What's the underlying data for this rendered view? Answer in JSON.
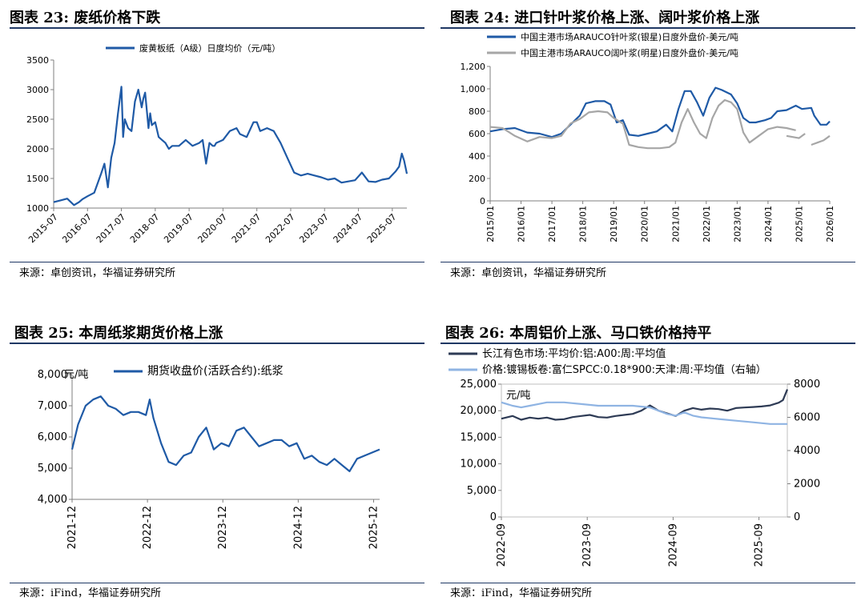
{
  "panels": [
    {
      "title": "图表 23:  废纸价格下跌",
      "source": "来源：卓创资讯，华福证券研究所"
    },
    {
      "title": "图表 24:  进口针叶浆价格上涨、阔叶浆价格上涨",
      "source": "来源：卓创资讯，华福证券研究所"
    },
    {
      "title": "图表 25:  本周纸浆期货价格上涨",
      "source": "来源：iFind，华福证券研究所"
    },
    {
      "title": "图表 26:  本周铝价上涨、马口铁价格持平",
      "source": "来源：iFind，华福证券研究所"
    }
  ],
  "chart_data": [
    {
      "type": "line",
      "title": "废纸价格下跌",
      "ylim": [
        1000,
        3500
      ],
      "yticks": [
        "1000",
        "1500",
        "2000",
        "2500",
        "3000",
        "3500"
      ],
      "yticks_v": [
        1000,
        1500,
        2000,
        2500,
        3000,
        3500
      ],
      "xlim": [
        2015.5,
        2025.93
      ],
      "xticks": [
        "2015-07",
        "2016-07",
        "2017-07",
        "2018-07",
        "2019-07",
        "2020-07",
        "2021-07",
        "2022-07",
        "2023-07",
        "2024-07",
        "2025-07"
      ],
      "xticks_v": [
        2015.5,
        2016.5,
        2017.5,
        2018.5,
        2019.5,
        2020.5,
        2021.5,
        2022.5,
        2023.5,
        2024.5,
        2025.5
      ],
      "series": [
        {
          "name": "废黄板纸（A级）日度均价（元/吨）",
          "color": "#1f5aa6",
          "x": [
            2015.5,
            2015.7,
            2015.9,
            2016.1,
            2016.25,
            2016.35,
            2016.5,
            2016.7,
            2016.9,
            2017.0,
            2017.1,
            2017.2,
            2017.3,
            2017.4,
            2017.5,
            2017.55,
            2017.6,
            2017.7,
            2017.8,
            2017.9,
            2018.0,
            2018.1,
            2018.15,
            2018.2,
            2018.3,
            2018.35,
            2018.4,
            2018.5,
            2018.6,
            2018.7,
            2018.8,
            2018.9,
            2019.0,
            2019.2,
            2019.4,
            2019.6,
            2019.8,
            2019.9,
            2020.0,
            2020.1,
            2020.2,
            2020.25,
            2020.3,
            2020.5,
            2020.7,
            2020.9,
            2021.0,
            2021.2,
            2021.4,
            2021.5,
            2021.6,
            2021.8,
            2022.0,
            2022.2,
            2022.4,
            2022.6,
            2022.8,
            2023.0,
            2023.2,
            2023.4,
            2023.6,
            2023.8,
            2024.0,
            2024.2,
            2024.4,
            2024.6,
            2024.8,
            2025.0,
            2025.2,
            2025.4,
            2025.6,
            2025.7,
            2025.78,
            2025.85,
            2025.93
          ],
          "y": [
            1100,
            1130,
            1160,
            1050,
            1100,
            1150,
            1200,
            1260,
            1580,
            1750,
            1350,
            1850,
            2100,
            2600,
            3050,
            2200,
            2500,
            2350,
            2300,
            2800,
            3000,
            2700,
            2850,
            2950,
            2350,
            2600,
            2400,
            2450,
            2200,
            2150,
            2100,
            2000,
            2050,
            2050,
            2150,
            2050,
            2100,
            2150,
            1750,
            2100,
            2050,
            2050,
            2100,
            2150,
            2300,
            2350,
            2250,
            2200,
            2450,
            2450,
            2300,
            2350,
            2300,
            2100,
            1850,
            1600,
            1550,
            1580,
            1550,
            1520,
            1480,
            1500,
            1430,
            1450,
            1470,
            1600,
            1450,
            1440,
            1480,
            1500,
            1620,
            1700,
            1920,
            1800,
            1580
          ]
        }
      ]
    },
    {
      "type": "line",
      "title": "进口针叶浆价格上涨、阔叶浆价格上涨",
      "ylim": [
        0,
        1200
      ],
      "yticks": [
        "0",
        "200",
        "400",
        "600",
        "800",
        "1,000",
        "1,200"
      ],
      "yticks_v": [
        0,
        200,
        400,
        600,
        800,
        1000,
        1200
      ],
      "xlim": [
        2015.0,
        2026.0
      ],
      "xticks": [
        "2015/01",
        "2016/01",
        "2017/01",
        "2018/01",
        "2019/01",
        "2020/01",
        "2021/01",
        "2022/01",
        "2023/01",
        "2024/01",
        "2025/01",
        "2026/01"
      ],
      "xticks_v": [
        2015,
        2016,
        2017,
        2018,
        2019,
        2020,
        2021,
        2022,
        2023,
        2024,
        2025,
        2026
      ],
      "series": [
        {
          "name": "中国主港市场ARAUCO针叶浆(银星)日度外盘价-美元/吨",
          "color": "#1f5aa6",
          "x": [
            2015.0,
            2015.4,
            2015.8,
            2016.2,
            2016.6,
            2017.0,
            2017.3,
            2017.6,
            2017.9,
            2018.1,
            2018.4,
            2018.7,
            2018.9,
            2019.1,
            2019.3,
            2019.5,
            2019.8,
            2020.1,
            2020.4,
            2020.7,
            2020.9,
            2021.1,
            2021.3,
            2021.5,
            2021.7,
            2021.9,
            2022.1,
            2022.3,
            2022.5,
            2022.8,
            2023.0,
            2023.2,
            2023.4,
            2023.6,
            2023.9,
            2024.1,
            2024.3,
            2024.6,
            2024.9,
            2025.1,
            2025.4,
            2025.5,
            2025.7,
            2025.9,
            2026.0
          ],
          "y": [
            620,
            640,
            650,
            610,
            600,
            570,
            600,
            680,
            760,
            870,
            890,
            890,
            860,
            700,
            720,
            590,
            580,
            600,
            620,
            680,
            620,
            820,
            980,
            980,
            880,
            760,
            920,
            1010,
            990,
            950,
            870,
            740,
            700,
            700,
            720,
            740,
            800,
            810,
            850,
            820,
            830,
            760,
            680,
            680,
            710
          ]
        },
        {
          "name": "中国主港市场ARAUCO阔叶浆(明星)日度外盘价-美元/吨",
          "color": "#a6a6a6",
          "x": [
            2015.0,
            2015.4,
            2015.8,
            2016.2,
            2016.6,
            2017.0,
            2017.3,
            2017.6,
            2017.9,
            2018.2,
            2018.5,
            2018.8,
            2019.0,
            2019.3,
            2019.5,
            2019.8,
            2020.1,
            2020.5,
            2020.8,
            2021.0,
            2021.2,
            2021.4,
            2021.6,
            2021.8,
            2022.0,
            2022.2,
            2022.4,
            2022.6,
            2022.8,
            2023.0,
            2023.2,
            2023.4,
            2023.7,
            2024.0,
            2024.3,
            2024.6,
            2024.9
          ],
          "y": [
            660,
            650,
            580,
            530,
            570,
            560,
            580,
            690,
            730,
            790,
            800,
            790,
            740,
            690,
            500,
            480,
            470,
            470,
            480,
            520,
            700,
            820,
            700,
            600,
            560,
            740,
            850,
            900,
            880,
            820,
            610,
            520,
            580,
            640,
            660,
            650,
            630
          ],
          "segments": [
            {
              "x": [
                2024.6,
                2024.8,
                2025.0,
                2025.2
              ],
              "y": [
                580,
                570,
                560,
                600
              ]
            },
            {
              "x": [
                2025.4,
                2025.6,
                2025.8,
                2026.0
              ],
              "y": [
                500,
                520,
                540,
                580
              ]
            }
          ]
        }
      ]
    },
    {
      "type": "line",
      "title": "本周纸浆期货价格上涨",
      "ylim": [
        4000,
        8000
      ],
      "yticks": [
        "4,000",
        "5,000",
        "6,000",
        "7,000",
        "8,000"
      ],
      "yticks_v": [
        4000,
        5000,
        6000,
        7000,
        8000
      ],
      "ylabel": "元/吨",
      "xlim": [
        2021.92,
        2026.0
      ],
      "xticks": [
        "2021-12",
        "2022-12",
        "2023-12",
        "2024-12",
        "2025-12"
      ],
      "xticks_v": [
        2021.92,
        2022.92,
        2023.92,
        2024.92,
        2025.92
      ],
      "series": [
        {
          "name": "期货收盘价(活跃合约):纸浆",
          "color": "#1f5aa6",
          "x": [
            2021.92,
            2022.0,
            2022.1,
            2022.2,
            2022.3,
            2022.4,
            2022.5,
            2022.6,
            2022.7,
            2022.8,
            2022.9,
            2022.95,
            2023.0,
            2023.1,
            2023.2,
            2023.3,
            2023.4,
            2023.5,
            2023.6,
            2023.7,
            2023.8,
            2023.9,
            2024.0,
            2024.1,
            2024.2,
            2024.3,
            2024.4,
            2024.5,
            2024.6,
            2024.7,
            2024.8,
            2024.9,
            2025.0,
            2025.1,
            2025.2,
            2025.3,
            2025.4,
            2025.5,
            2025.6,
            2025.7,
            2025.8,
            2025.9,
            2026.0
          ],
          "y": [
            5600,
            6400,
            7000,
            7200,
            7300,
            7000,
            6900,
            6700,
            6800,
            6800,
            6700,
            7200,
            6600,
            5800,
            5200,
            5100,
            5400,
            5500,
            6000,
            6300,
            5600,
            5800,
            5700,
            6200,
            6300,
            6000,
            5700,
            5800,
            5900,
            5900,
            5700,
            5800,
            5300,
            5400,
            5200,
            5100,
            5300,
            5100,
            4900,
            5300,
            5400,
            5500,
            5600
          ]
        }
      ]
    },
    {
      "type": "line",
      "title": "本周铝价上涨、马口铁价格持平",
      "ylim": [
        0,
        25000
      ],
      "yticks": [
        "0",
        "5,000",
        "10,000",
        "15,000",
        "20,000",
        "25,000"
      ],
      "yticks_v": [
        0,
        5000,
        10000,
        15000,
        20000,
        25000
      ],
      "ylabel_right": "元/吨",
      "ylim_right": [
        0,
        8000
      ],
      "yticks_right": [
        "0",
        "2000",
        "4000",
        "6000",
        "8000"
      ],
      "yticks_right_v": [
        0,
        2000,
        4000,
        6000,
        8000
      ],
      "xlim": [
        2022.67,
        2026.0
      ],
      "xticks": [
        "2022-09",
        "2023-09",
        "2024-09",
        "2025-09"
      ],
      "xticks_v": [
        2022.67,
        2023.67,
        2024.67,
        2025.67
      ],
      "series": [
        {
          "name": "长江有色市场:平均价:铝:A00:周:平均值",
          "color": "#2e3b55",
          "axis": "left",
          "x": [
            2022.67,
            2022.8,
            2022.9,
            2023.0,
            2023.1,
            2023.2,
            2023.3,
            2023.4,
            2023.5,
            2023.6,
            2023.7,
            2023.8,
            2023.9,
            2024.0,
            2024.1,
            2024.2,
            2024.3,
            2024.4,
            2024.5,
            2024.6,
            2024.7,
            2024.8,
            2024.9,
            2025.0,
            2025.1,
            2025.2,
            2025.3,
            2025.4,
            2025.5,
            2025.6,
            2025.7,
            2025.8,
            2025.9,
            2025.95,
            2026.0
          ],
          "y": [
            18500,
            19000,
            18300,
            18700,
            18500,
            18700,
            18300,
            18400,
            18800,
            19000,
            19200,
            18800,
            18700,
            19000,
            19200,
            19400,
            20000,
            21000,
            20000,
            19500,
            19000,
            20000,
            20500,
            20200,
            20400,
            20300,
            20000,
            20500,
            20600,
            20700,
            20800,
            21000,
            21500,
            22000,
            24000
          ]
        },
        {
          "name": "价格:镀锡板卷:富仁SPCC:0.18*900:天津:周:平均值（右轴）",
          "color": "#8fb4e3",
          "axis": "right",
          "x": [
            2022.67,
            2022.8,
            2022.9,
            2023.0,
            2023.1,
            2023.2,
            2023.4,
            2023.6,
            2023.8,
            2024.0,
            2024.2,
            2024.4,
            2024.5,
            2024.6,
            2024.7,
            2024.8,
            2024.9,
            2025.0,
            2025.2,
            2025.4,
            2025.6,
            2025.8,
            2026.0
          ],
          "y": [
            6900,
            6700,
            6600,
            6700,
            6800,
            6900,
            6900,
            6800,
            6700,
            6700,
            6700,
            6600,
            6400,
            6200,
            6100,
            6300,
            6100,
            6000,
            5900,
            5800,
            5700,
            5600,
            5600
          ]
        }
      ]
    }
  ]
}
